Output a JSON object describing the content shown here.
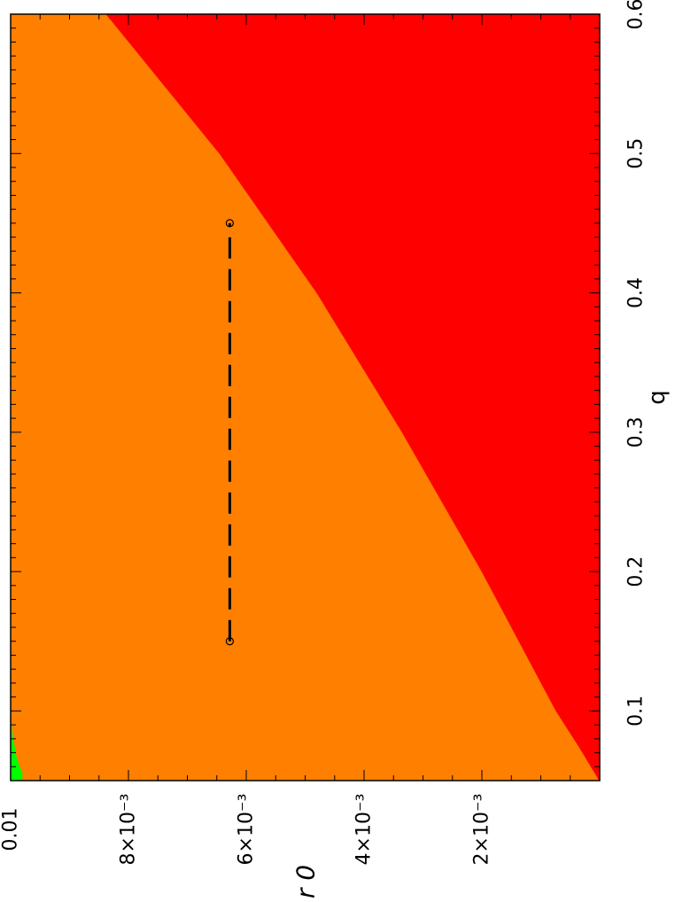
{
  "chart_data": {
    "type": "heatmap",
    "title": "",
    "xlabel": "q",
    "ylabel": "r 0",
    "xlim": [
      0.05,
      0.6
    ],
    "ylim": [
      0,
      0.01
    ],
    "x_ticks": [
      {
        "value": 0.1,
        "label": "0.1"
      },
      {
        "value": 0.2,
        "label": "0.2"
      },
      {
        "value": 0.3,
        "label": "0.3"
      },
      {
        "value": 0.4,
        "label": "0.4"
      },
      {
        "value": 0.5,
        "label": "0.5"
      },
      {
        "value": 0.6,
        "label": "0.6"
      }
    ],
    "y_ticks": [
      {
        "value": 0.002,
        "label": "2×10⁻³"
      },
      {
        "value": 0.004,
        "label": "4×10⁻³"
      },
      {
        "value": 0.006,
        "label": "6×10⁻³"
      },
      {
        "value": 0.008,
        "label": "8×10⁻³"
      },
      {
        "value": 0.01,
        "label": "0.01"
      }
    ],
    "regions": [
      {
        "color": "#00ff00",
        "boundary": [
          {
            "q": 0.05,
            "r": 0.0098
          },
          {
            "q": 0.0558,
            "r": 0.0098
          },
          {
            "q": 0.0603,
            "r": 0.00985
          },
          {
            "q": 0.0671,
            "r": 0.0099
          },
          {
            "q": 0.074,
            "r": 0.00993
          },
          {
            "q": 0.081,
            "r": 0.00996
          },
          {
            "q": 0.088,
            "r": 0.00998
          },
          {
            "q": 0.095,
            "r": 0.01
          },
          {
            "q": 0.05,
            "r": 0.01
          }
        ]
      },
      {
        "color": "#ff0000",
        "boundary": [
          {
            "q": 0.05,
            "r": 0.0
          },
          {
            "q": 0.05,
            "r": 1e-05
          },
          {
            "q": 0.0739,
            "r": 0.00035
          },
          {
            "q": 0.1003,
            "r": 0.00075
          },
          {
            "q": 0.1996,
            "r": 0.002
          },
          {
            "q": 0.2994,
            "r": 0.00335
          },
          {
            "q": 0.3995,
            "r": 0.0048
          },
          {
            "q": 0.4995,
            "r": 0.00645
          },
          {
            "q": 0.5999,
            "r": 0.00838
          },
          {
            "q": 0.6,
            "r": 0.0
          }
        ]
      }
    ],
    "background_color": "#ff7f00",
    "series": [
      {
        "type": "line",
        "style": "dashed",
        "color": "#000000",
        "x": [
          0.15,
          0.45
        ],
        "y": [
          0.00628,
          0.00628
        ],
        "endpoint_markers": "open-circle"
      }
    ]
  }
}
